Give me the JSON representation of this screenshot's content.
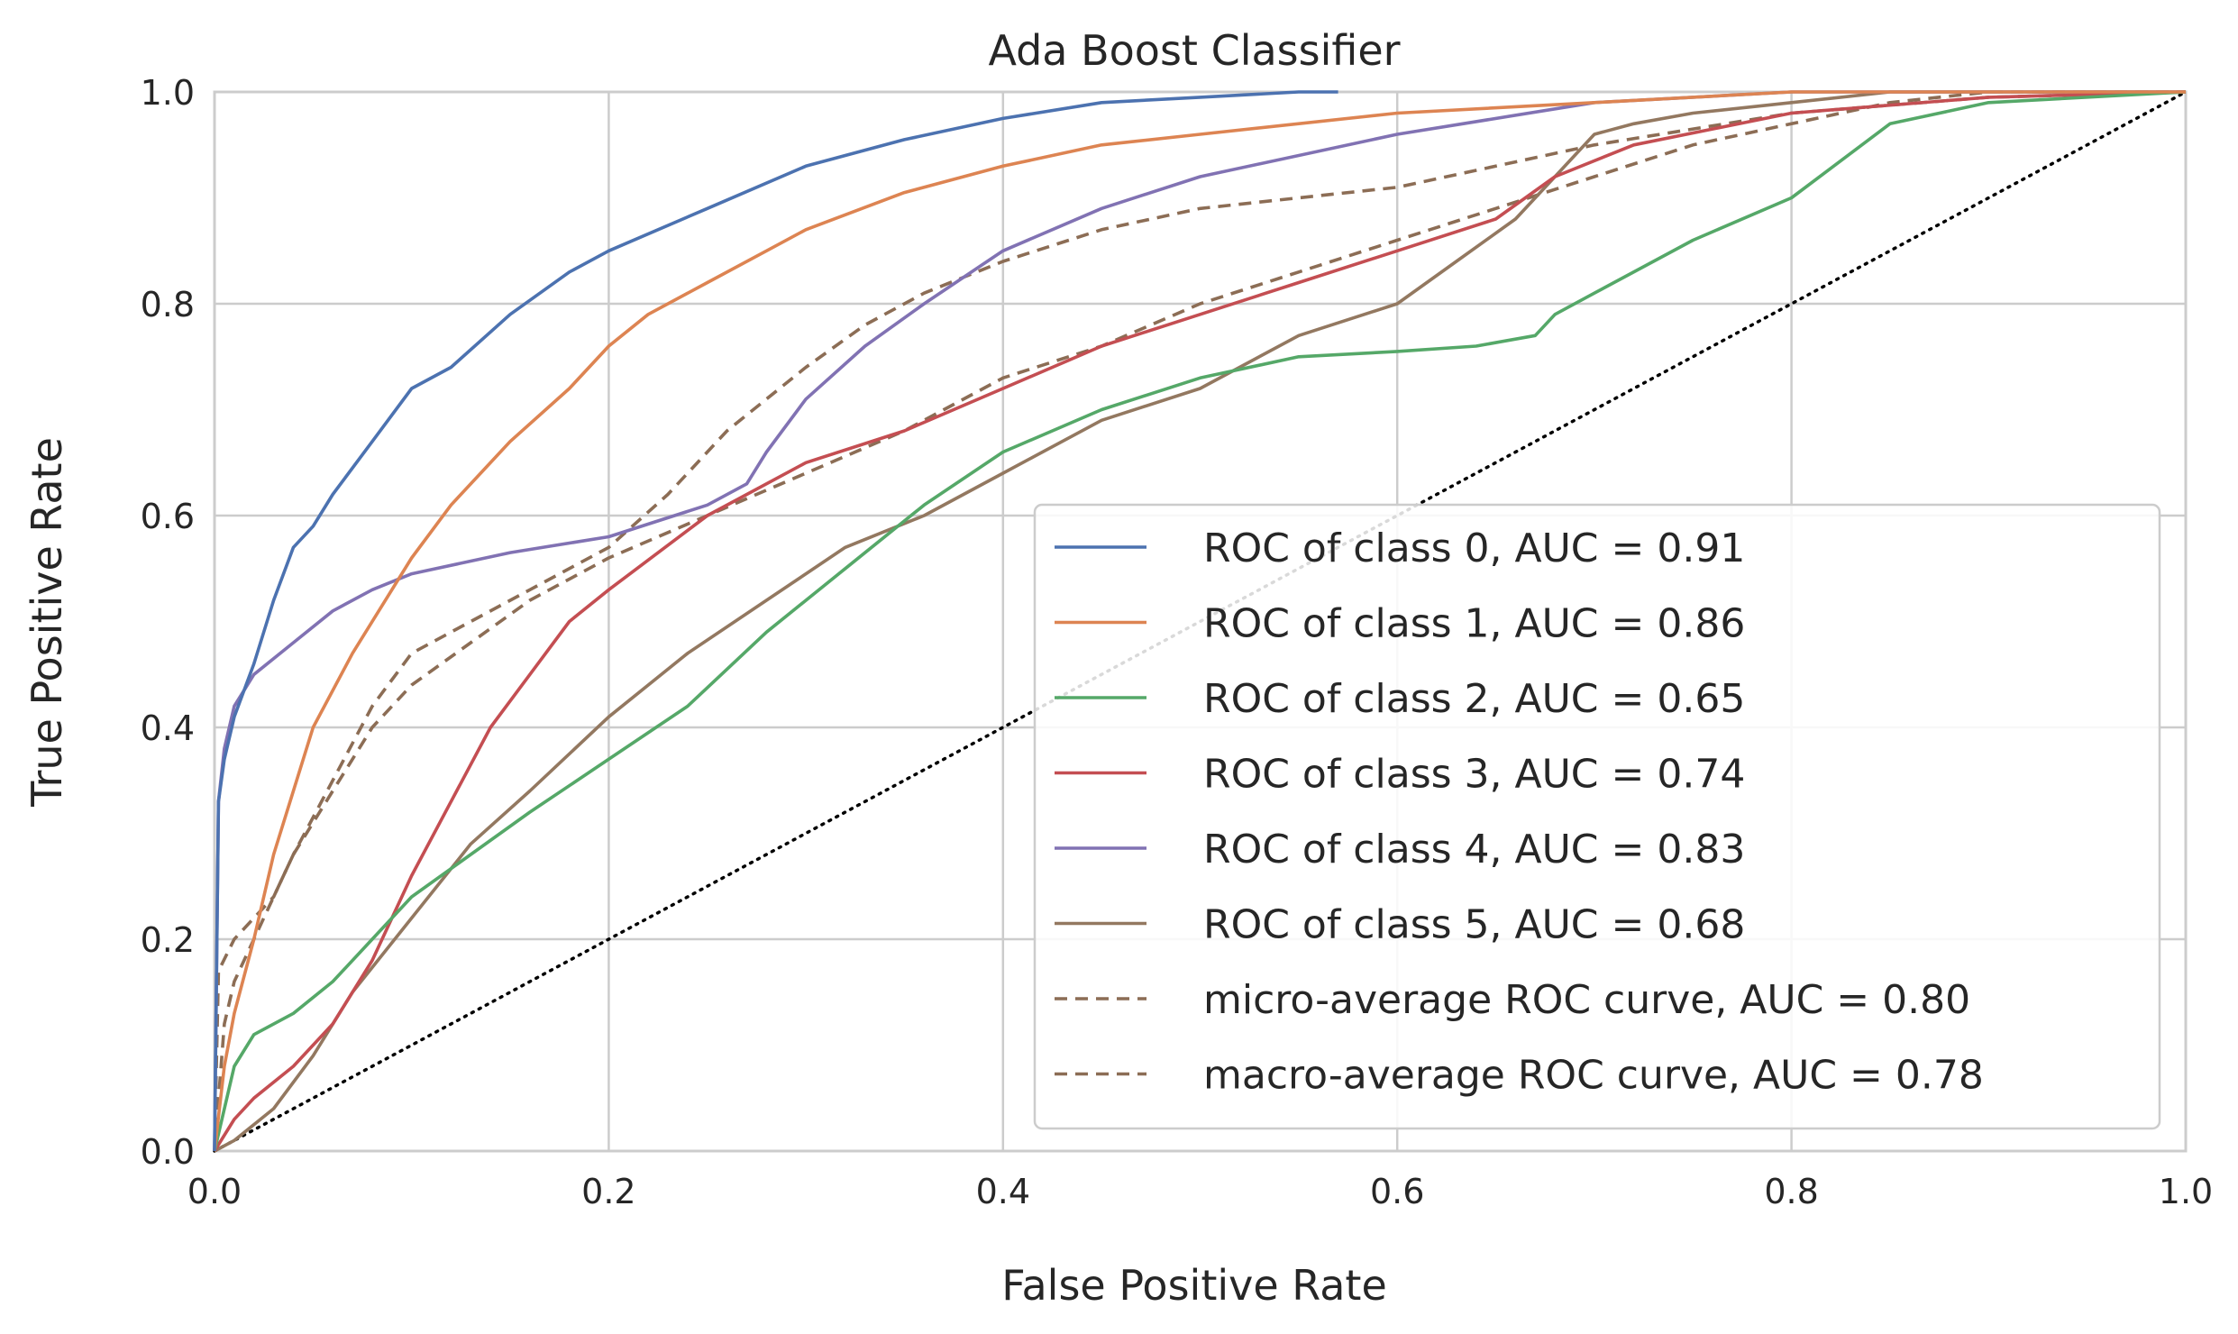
{
  "chart_data": {
    "type": "line",
    "title": "Ada Boost Classifier",
    "xlabel": "False Positive Rate",
    "ylabel": "True Positive Rate",
    "xlim": [
      0.0,
      1.0
    ],
    "ylim": [
      0.0,
      1.0
    ],
    "grid": true,
    "legend_position": "lower-right",
    "x_ticks": [
      "0.0",
      "0.2",
      "0.4",
      "0.6",
      "0.8",
      "1.0"
    ],
    "y_ticks": [
      "0.0",
      "0.2",
      "0.4",
      "0.6",
      "0.8",
      "1.0"
    ],
    "chance_line": {
      "x": [
        0,
        1
      ],
      "y": [
        0,
        1
      ],
      "color": "#000000",
      "style": "dotted"
    },
    "series": [
      {
        "name": "ROC of class 0, AUC = 0.91",
        "color": "#4c72b0",
        "style": "solid",
        "x": [
          0,
          0.002,
          0.005,
          0.01,
          0.02,
          0.03,
          0.04,
          0.05,
          0.06,
          0.08,
          0.1,
          0.12,
          0.15,
          0.18,
          0.2,
          0.25,
          0.3,
          0.35,
          0.4,
          0.45,
          0.5,
          0.55,
          0.57
        ],
        "y": [
          0,
          0.33,
          0.37,
          0.41,
          0.46,
          0.52,
          0.57,
          0.59,
          0.62,
          0.67,
          0.72,
          0.74,
          0.79,
          0.83,
          0.85,
          0.89,
          0.93,
          0.955,
          0.975,
          0.99,
          0.995,
          1.0,
          1.0
        ]
      },
      {
        "name": "ROC of class 1, AUC = 0.86",
        "color": "#dd8452",
        "style": "solid",
        "x": [
          0,
          0.005,
          0.01,
          0.02,
          0.03,
          0.05,
          0.07,
          0.1,
          0.12,
          0.15,
          0.18,
          0.2,
          0.22,
          0.25,
          0.28,
          0.3,
          0.35,
          0.4,
          0.45,
          0.5,
          0.6,
          0.7,
          0.8,
          1.0
        ],
        "y": [
          0,
          0.08,
          0.13,
          0.2,
          0.28,
          0.4,
          0.47,
          0.56,
          0.61,
          0.67,
          0.72,
          0.76,
          0.79,
          0.82,
          0.85,
          0.87,
          0.905,
          0.93,
          0.95,
          0.96,
          0.98,
          0.99,
          1.0,
          1.0
        ]
      },
      {
        "name": "ROC of class 2, AUC = 0.65",
        "color": "#55a868",
        "style": "solid",
        "x": [
          0,
          0.01,
          0.02,
          0.04,
          0.06,
          0.08,
          0.1,
          0.13,
          0.16,
          0.2,
          0.24,
          0.28,
          0.32,
          0.36,
          0.4,
          0.45,
          0.5,
          0.55,
          0.6,
          0.64,
          0.67,
          0.68,
          0.7,
          0.75,
          0.8,
          0.85,
          0.9,
          1.0
        ],
        "y": [
          0,
          0.08,
          0.11,
          0.13,
          0.16,
          0.2,
          0.24,
          0.28,
          0.32,
          0.37,
          0.42,
          0.49,
          0.55,
          0.61,
          0.66,
          0.7,
          0.73,
          0.75,
          0.755,
          0.76,
          0.77,
          0.79,
          0.81,
          0.86,
          0.9,
          0.97,
          0.99,
          1.0
        ]
      },
      {
        "name": "ROC of class 3, AUC = 0.74",
        "color": "#c44e52",
        "style": "solid",
        "x": [
          0,
          0.01,
          0.02,
          0.04,
          0.06,
          0.08,
          0.1,
          0.12,
          0.14,
          0.16,
          0.18,
          0.2,
          0.25,
          0.3,
          0.35,
          0.4,
          0.45,
          0.5,
          0.55,
          0.6,
          0.65,
          0.68,
          0.72,
          0.8,
          0.9,
          1.0
        ],
        "y": [
          0,
          0.03,
          0.05,
          0.08,
          0.12,
          0.18,
          0.26,
          0.33,
          0.4,
          0.45,
          0.5,
          0.53,
          0.6,
          0.65,
          0.68,
          0.72,
          0.76,
          0.79,
          0.82,
          0.85,
          0.88,
          0.92,
          0.95,
          0.98,
          0.995,
          1.0
        ]
      },
      {
        "name": "ROC of class 4, AUC = 0.83",
        "color": "#8172b3",
        "style": "solid",
        "x": [
          0,
          0.002,
          0.005,
          0.01,
          0.02,
          0.04,
          0.06,
          0.08,
          0.1,
          0.15,
          0.2,
          0.25,
          0.27,
          0.28,
          0.3,
          0.33,
          0.36,
          0.4,
          0.45,
          0.5,
          0.6,
          0.7,
          0.8,
          1.0
        ],
        "y": [
          0,
          0.33,
          0.38,
          0.42,
          0.45,
          0.48,
          0.51,
          0.53,
          0.545,
          0.565,
          0.58,
          0.61,
          0.63,
          0.66,
          0.71,
          0.76,
          0.8,
          0.85,
          0.89,
          0.92,
          0.96,
          0.99,
          1.0,
          1.0
        ]
      },
      {
        "name": "ROC of class 5, AUC = 0.68",
        "color": "#937860",
        "style": "solid",
        "x": [
          0,
          0.01,
          0.03,
          0.05,
          0.07,
          0.1,
          0.13,
          0.16,
          0.2,
          0.24,
          0.28,
          0.32,
          0.36,
          0.4,
          0.45,
          0.5,
          0.55,
          0.6,
          0.63,
          0.66,
          0.68,
          0.7,
          0.72,
          0.75,
          0.8,
          0.85,
          0.9,
          1.0
        ],
        "y": [
          0,
          0.01,
          0.04,
          0.09,
          0.15,
          0.22,
          0.29,
          0.34,
          0.41,
          0.47,
          0.52,
          0.57,
          0.6,
          0.64,
          0.69,
          0.72,
          0.77,
          0.8,
          0.84,
          0.88,
          0.92,
          0.96,
          0.97,
          0.98,
          0.99,
          1.0,
          1.0,
          1.0
        ]
      },
      {
        "name": "micro-average ROC curve, AUC = 0.80",
        "color": "#8c6d55",
        "style": "dashed",
        "x": [
          0,
          0.002,
          0.01,
          0.02,
          0.03,
          0.04,
          0.06,
          0.08,
          0.1,
          0.13,
          0.16,
          0.2,
          0.23,
          0.26,
          0.3,
          0.33,
          0.36,
          0.4,
          0.45,
          0.5,
          0.55,
          0.6,
          0.7,
          0.8,
          0.9,
          1.0
        ],
        "y": [
          0,
          0.17,
          0.2,
          0.22,
          0.24,
          0.28,
          0.35,
          0.42,
          0.47,
          0.5,
          0.53,
          0.57,
          0.62,
          0.68,
          0.74,
          0.78,
          0.81,
          0.84,
          0.87,
          0.89,
          0.9,
          0.91,
          0.95,
          0.98,
          0.995,
          1.0
        ]
      },
      {
        "name": "macro-average ROC curve, AUC = 0.78",
        "color": "#8c6d55",
        "style": "dashed",
        "x": [
          0,
          0.005,
          0.01,
          0.02,
          0.04,
          0.06,
          0.08,
          0.1,
          0.13,
          0.16,
          0.2,
          0.25,
          0.3,
          0.35,
          0.4,
          0.45,
          0.5,
          0.55,
          0.6,
          0.65,
          0.7,
          0.75,
          0.8,
          0.85,
          0.9,
          1.0
        ],
        "y": [
          0,
          0.12,
          0.16,
          0.2,
          0.28,
          0.34,
          0.4,
          0.44,
          0.48,
          0.52,
          0.56,
          0.6,
          0.64,
          0.68,
          0.73,
          0.76,
          0.8,
          0.83,
          0.86,
          0.89,
          0.92,
          0.95,
          0.97,
          0.99,
          1.0,
          1.0
        ]
      }
    ]
  }
}
